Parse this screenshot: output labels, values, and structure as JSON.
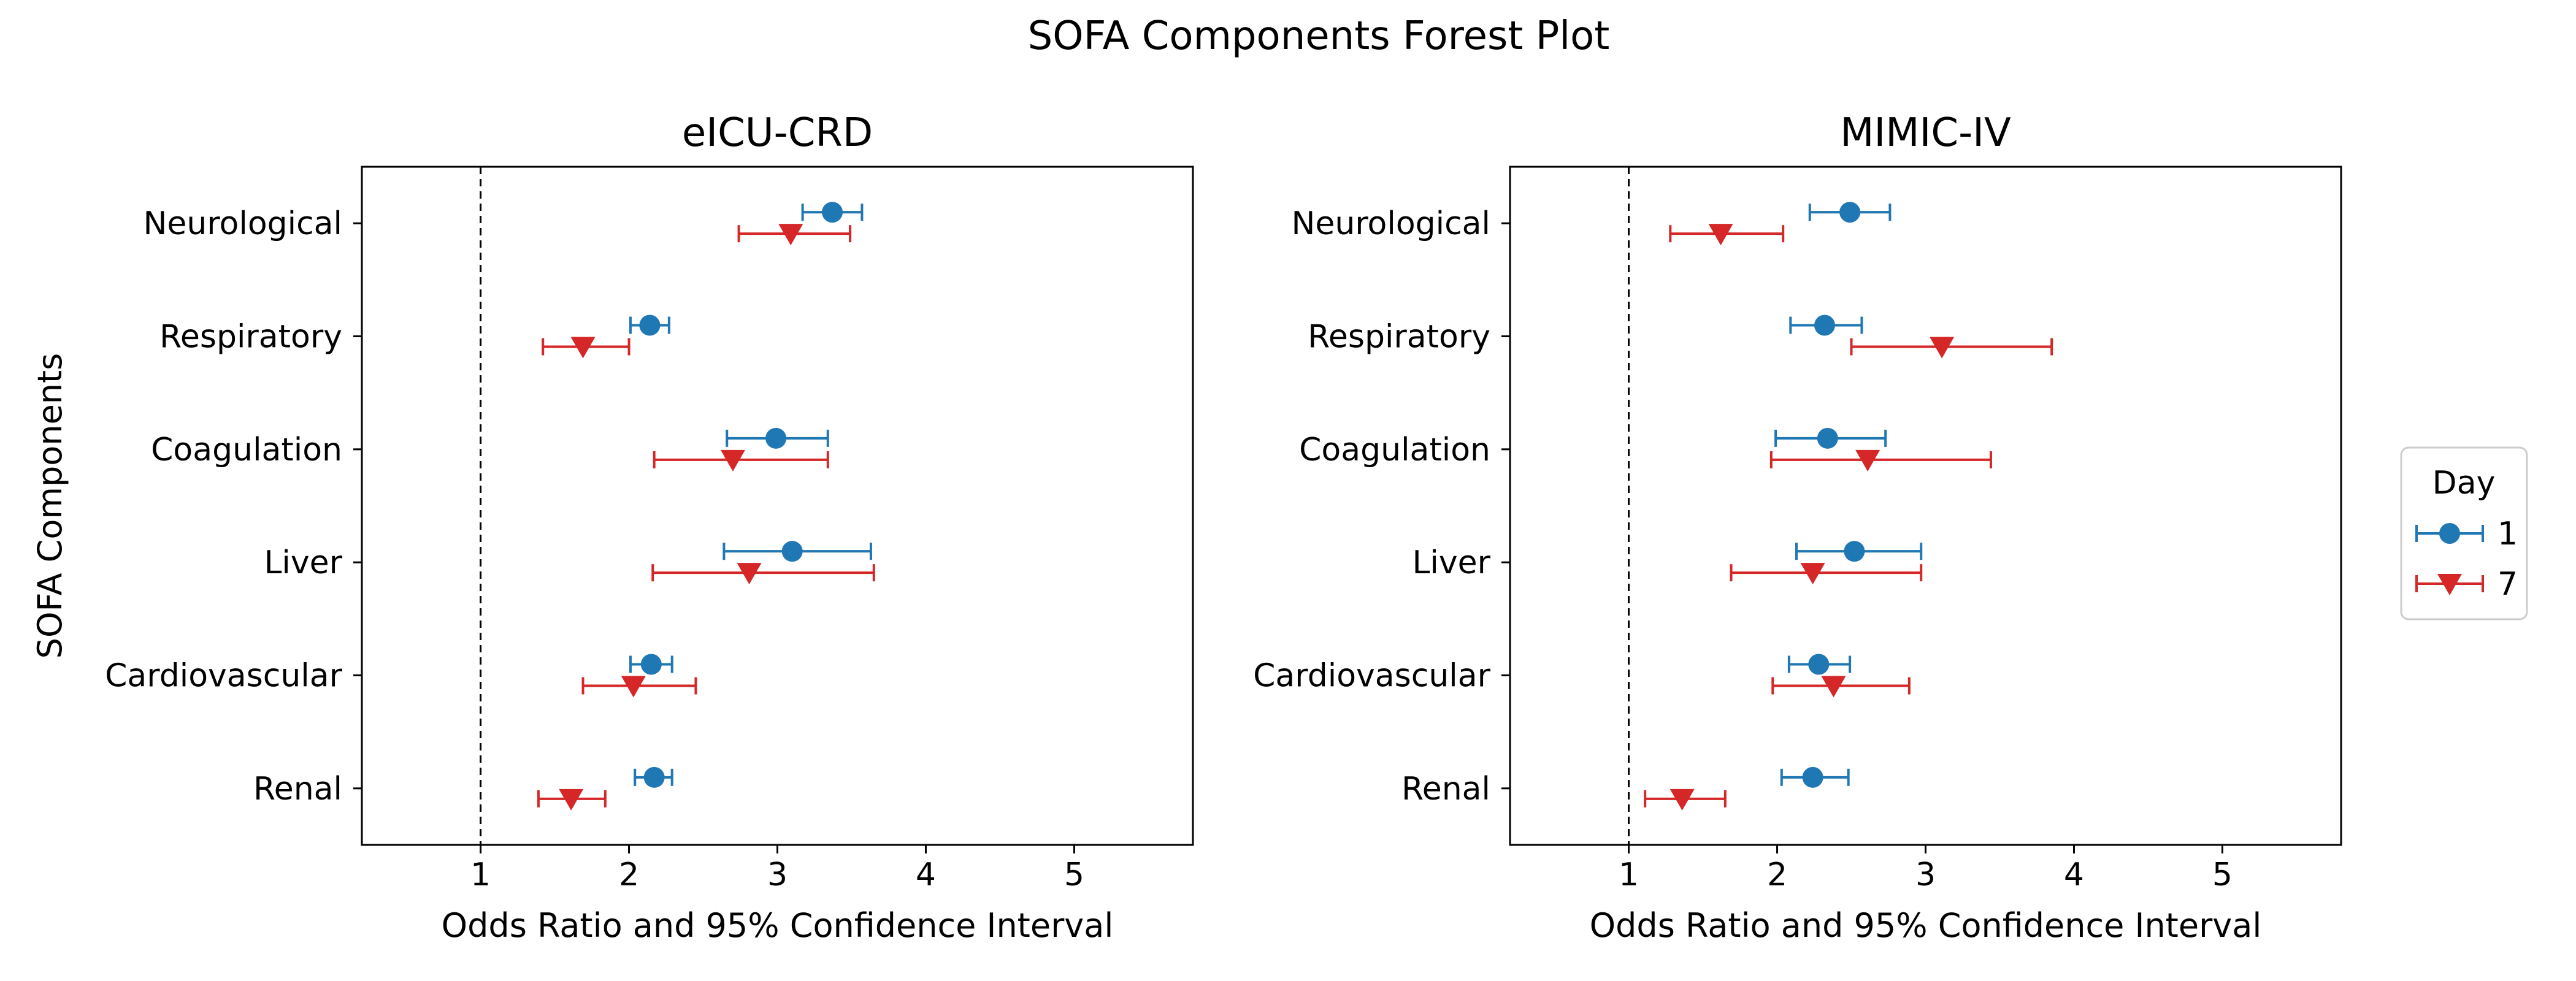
{
  "figure": {
    "title": "SOFA Components Forest Plot",
    "ylabel": "SOFA Components",
    "reference_line": 1
  },
  "legend": {
    "title": "Day",
    "placement": "right",
    "entries": [
      {
        "label": "1",
        "color": "#1f77b4",
        "marker": "circle"
      },
      {
        "label": "7",
        "color": "#d62728",
        "marker": "triangle-down"
      }
    ]
  },
  "chart_data": [
    {
      "type": "forest",
      "title": "eICU-CRD",
      "xlabel": "Odds Ratio and 95% Confidence Interval",
      "ylabel": "SOFA Components",
      "xlim": [
        0.2,
        5.8
      ],
      "xticks": [
        1,
        2,
        3,
        4,
        5
      ],
      "categories": [
        "Neurological",
        "Respiratory",
        "Coagulation",
        "Liver",
        "Cardiovascular",
        "Renal"
      ],
      "series": [
        {
          "name": "1",
          "color": "#1f77b4",
          "marker": "circle",
          "or": [
            3.37,
            2.14,
            2.99,
            3.1,
            2.15,
            2.17
          ],
          "lower": [
            3.17,
            2.01,
            2.66,
            2.64,
            2.01,
            2.04
          ],
          "upper": [
            3.57,
            2.27,
            3.34,
            3.63,
            2.29,
            2.29
          ]
        },
        {
          "name": "7",
          "color": "#d62728",
          "marker": "triangle-down",
          "or": [
            3.09,
            1.69,
            2.7,
            2.81,
            2.03,
            1.61
          ],
          "lower": [
            2.74,
            1.42,
            2.17,
            2.16,
            1.69,
            1.39
          ],
          "upper": [
            3.49,
            2.0,
            3.34,
            3.65,
            2.45,
            1.84
          ]
        }
      ]
    },
    {
      "type": "forest",
      "title": "MIMIC-IV",
      "xlabel": "Odds Ratio and 95% Confidence Interval",
      "xlim": [
        0.2,
        5.8
      ],
      "xticks": [
        1,
        2,
        3,
        4,
        5
      ],
      "categories": [
        "Neurological",
        "Respiratory",
        "Coagulation",
        "Liver",
        "Cardiovascular",
        "Renal"
      ],
      "series": [
        {
          "name": "1",
          "color": "#1f77b4",
          "marker": "circle",
          "or": [
            2.49,
            2.32,
            2.34,
            2.52,
            2.28,
            2.24
          ],
          "lower": [
            2.22,
            2.09,
            1.99,
            2.13,
            2.08,
            2.03
          ],
          "upper": [
            2.76,
            2.57,
            2.73,
            2.97,
            2.49,
            2.48
          ]
        },
        {
          "name": "7",
          "color": "#d62728",
          "marker": "triangle-down",
          "or": [
            1.62,
            3.11,
            2.61,
            2.24,
            2.38,
            1.36
          ],
          "lower": [
            1.28,
            2.5,
            1.96,
            1.69,
            1.97,
            1.11
          ],
          "upper": [
            2.04,
            3.85,
            3.44,
            2.97,
            2.89,
            1.65
          ]
        }
      ]
    }
  ]
}
